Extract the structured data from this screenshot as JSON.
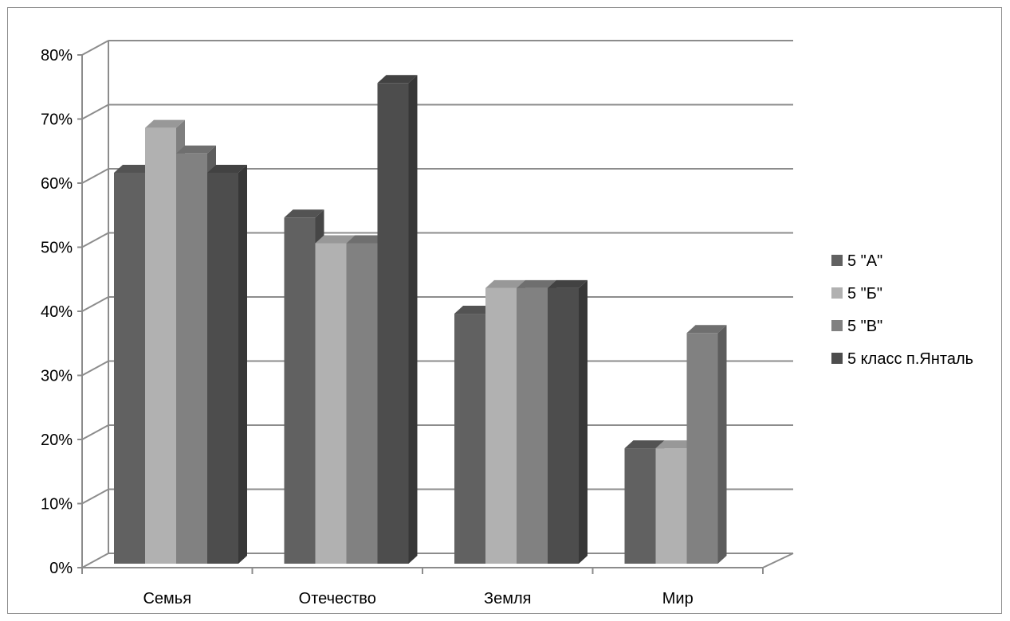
{
  "chart_data": {
    "type": "bar",
    "title": "",
    "xlabel": "",
    "ylabel": "",
    "categories": [
      "Семья",
      "Отечество",
      "Земля",
      "Мир"
    ],
    "series": [
      {
        "name": "5 \"А\"",
        "values": [
          0.61,
          0.54,
          0.39,
          0.18
        ],
        "color": "#616161"
      },
      {
        "name": "5 \"Б\"",
        "values": [
          0.68,
          0.5,
          0.43,
          0.18
        ],
        "color": "#b1b1b1"
      },
      {
        "name": "5 \"В\"",
        "values": [
          0.64,
          0.5,
          0.43,
          0.36
        ],
        "color": "#818181"
      },
      {
        "name": "5 класс п.Янталь",
        "values": [
          0.61,
          0.75,
          0.43,
          null
        ],
        "color": "#4d4d4d"
      }
    ],
    "ylim": [
      0,
      0.8
    ],
    "yticks": [
      "0%",
      "10%",
      "20%",
      "30%",
      "40%",
      "50%",
      "60%",
      "70%",
      "80%"
    ],
    "grid": true,
    "legend_position": "right",
    "style": "3d-clustered-column"
  }
}
